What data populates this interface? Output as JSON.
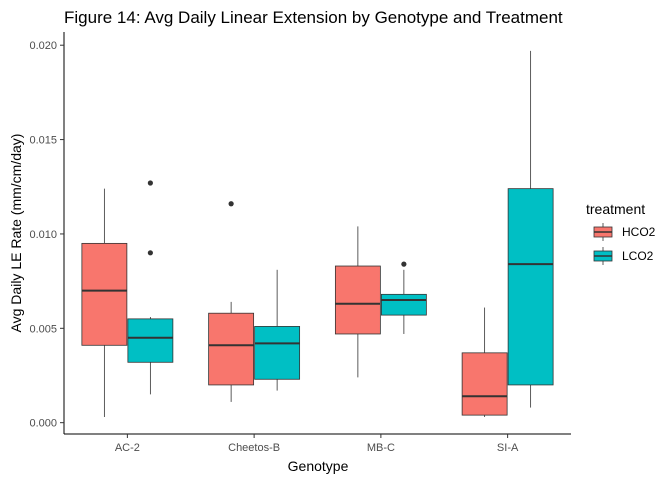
{
  "chart_data": {
    "type": "boxplot",
    "title": "Figure 14: Avg Daily Linear Extension by Genotype and Treatment",
    "xlabel": "Genotype",
    "ylabel": "Avg Daily LE Rate (mm/cm/day)",
    "ylim": [
      -0.0006,
      0.0207
    ],
    "yticks": [
      0.0,
      0.005,
      0.01,
      0.015,
      0.02
    ],
    "ytick_labels": [
      "0.000",
      "0.005",
      "0.010",
      "0.015",
      "0.020"
    ],
    "categories": [
      "AC-2",
      "Cheetos-B",
      "MB-C",
      "SI-A"
    ],
    "grid": false,
    "legend": {
      "title": "treatment",
      "position": "right"
    },
    "series": [
      {
        "name": "HCO2",
        "color": "#F8766D",
        "boxes": [
          {
            "category": "AC-2",
            "whisker_low": 0.0003,
            "q1": 0.0041,
            "median": 0.007,
            "q3": 0.0095,
            "whisker_high": 0.0124,
            "outliers": []
          },
          {
            "category": "Cheetos-B",
            "whisker_low": 0.0011,
            "q1": 0.002,
            "median": 0.0041,
            "q3": 0.0058,
            "whisker_high": 0.0064,
            "outliers": [
              0.0116
            ]
          },
          {
            "category": "MB-C",
            "whisker_low": 0.0024,
            "q1": 0.0047,
            "median": 0.0063,
            "q3": 0.0083,
            "whisker_high": 0.0104,
            "outliers": []
          },
          {
            "category": "SI-A",
            "whisker_low": 0.0003,
            "q1": 0.0004,
            "median": 0.0014,
            "q3": 0.0037,
            "whisker_high": 0.0061,
            "outliers": []
          }
        ]
      },
      {
        "name": "LCO2",
        "color": "#00BFC4",
        "boxes": [
          {
            "category": "AC-2",
            "whisker_low": 0.0015,
            "q1": 0.0032,
            "median": 0.0045,
            "q3": 0.0055,
            "whisker_high": 0.0056,
            "outliers": [
              0.009,
              0.0127
            ]
          },
          {
            "category": "Cheetos-B",
            "whisker_low": 0.0017,
            "q1": 0.0023,
            "median": 0.0042,
            "q3": 0.0051,
            "whisker_high": 0.0081,
            "outliers": []
          },
          {
            "category": "MB-C",
            "whisker_low": 0.0047,
            "q1": 0.0057,
            "median": 0.0065,
            "q3": 0.0068,
            "whisker_high": 0.0081,
            "outliers": [
              0.0084
            ]
          },
          {
            "category": "SI-A",
            "whisker_low": 0.0008,
            "q1": 0.002,
            "median": 0.0084,
            "q3": 0.0124,
            "whisker_high": 0.0197,
            "outliers": []
          }
        ]
      }
    ]
  }
}
